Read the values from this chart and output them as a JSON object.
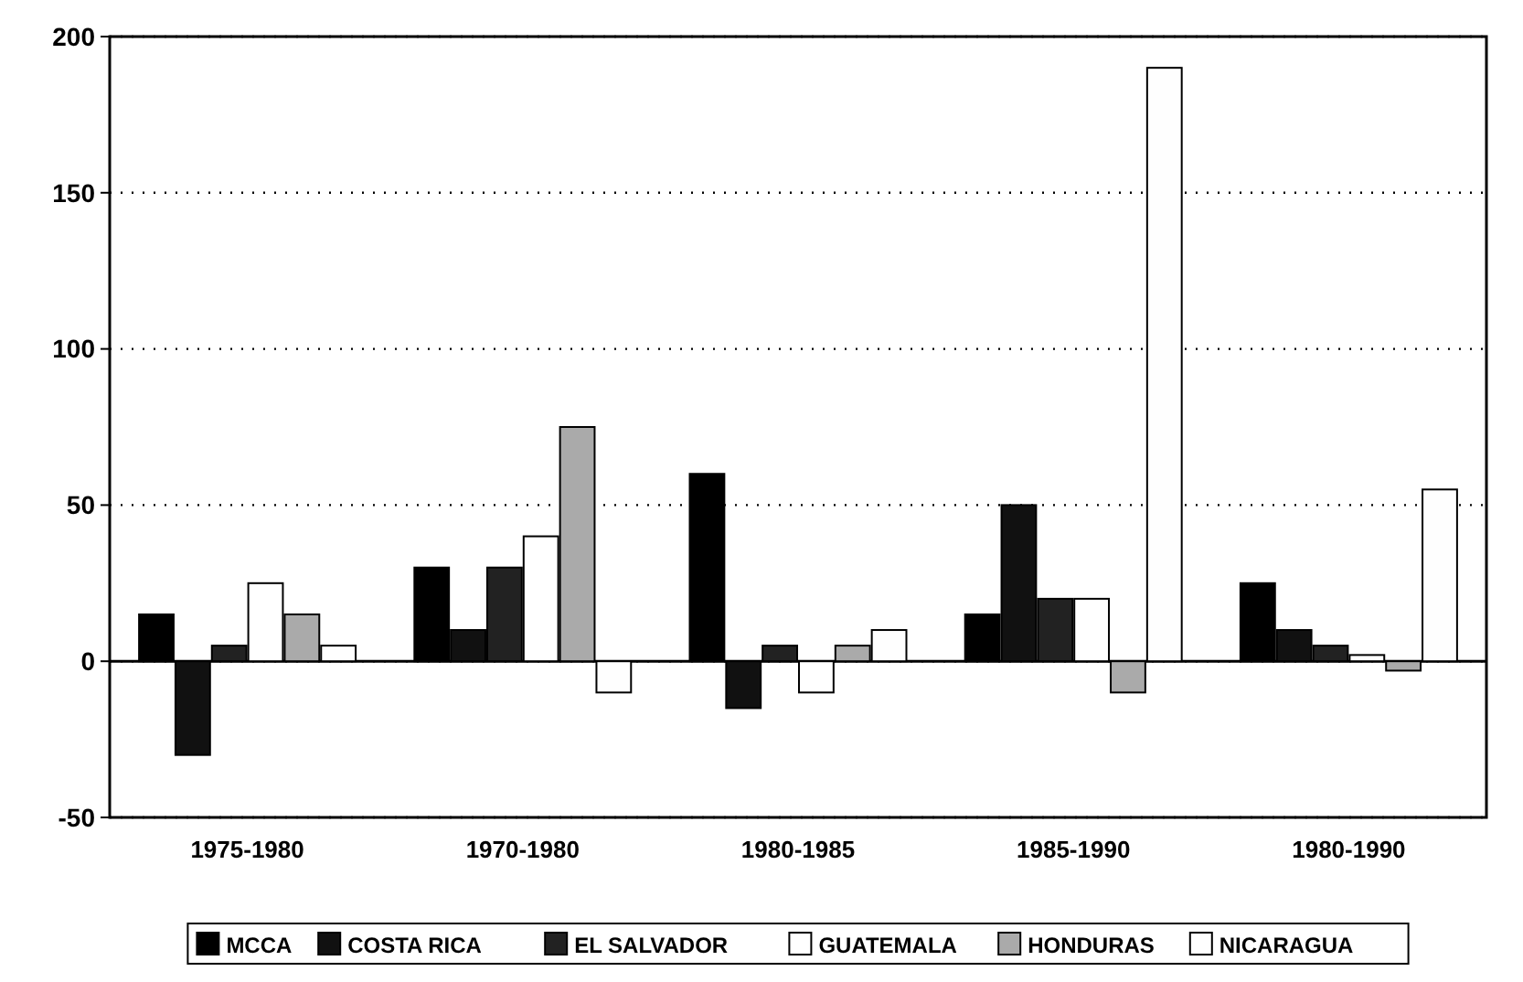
{
  "chart_data": {
    "type": "bar",
    "categories": [
      "1975-1980",
      "1970-1980",
      "1980-1985",
      "1985-1990",
      "1980-1990"
    ],
    "series": [
      {
        "name": "MCCA",
        "color": "#000000",
        "values": [
          15,
          30,
          60,
          15,
          25
        ]
      },
      {
        "name": "COSTA RICA",
        "color": "#111111",
        "values": [
          -30,
          10,
          -15,
          50,
          10
        ]
      },
      {
        "name": "EL SALVADOR",
        "color": "#222222",
        "values": [
          5,
          30,
          5,
          20,
          5
        ]
      },
      {
        "name": "GUATEMALA",
        "color": "#ffffff",
        "values": [
          25,
          40,
          -10,
          20,
          2
        ]
      },
      {
        "name": "HONDURAS",
        "color": "#aaaaaa",
        "values": [
          15,
          75,
          5,
          -10,
          -3
        ]
      },
      {
        "name": "NICARAGUA",
        "color": "#fefefe",
        "values": [
          5,
          -10,
          10,
          190,
          55
        ]
      }
    ],
    "ylim": [
      -50,
      200
    ],
    "yticks": [
      -50,
      0,
      50,
      100,
      150,
      200
    ],
    "grid": "y",
    "legend": "bottom"
  }
}
